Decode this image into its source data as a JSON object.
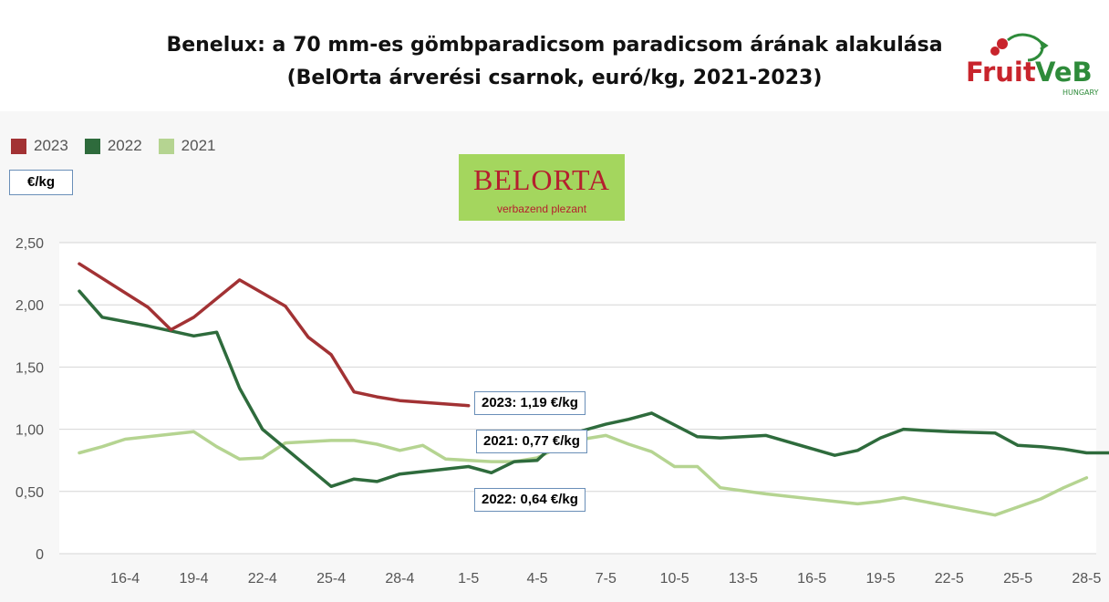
{
  "chart_data": {
    "type": "line",
    "title": "Benelux: a 70 mm-es gömbparadicsom paradicsom árának alakulása",
    "subtitle": "(BelOrta árverési csarnok, euró/kg, 2021-2023)",
    "ylabel": "€/kg",
    "ylim": [
      0,
      2.5
    ],
    "yticks": [
      {
        "v": 0,
        "label": "0"
      },
      {
        "v": 0.5,
        "label": "0,50"
      },
      {
        "v": 1,
        "label": "1,00"
      },
      {
        "v": 1.5,
        "label": "1,50"
      },
      {
        "v": 2,
        "label": "2,00"
      },
      {
        "v": 2.5,
        "label": "2,50"
      }
    ],
    "xticks": [
      "16-4",
      "19-4",
      "22-4",
      "25-4",
      "28-4",
      "1-5",
      "4-5",
      "7-5",
      "10-5",
      "13-5",
      "16-5",
      "19-5",
      "22-5",
      "25-5",
      "28-5"
    ],
    "grid": true,
    "legend": "top-left",
    "series": [
      {
        "name": "2023",
        "color": "#a23234",
        "x": [
          0,
          3,
          4,
          5,
          7,
          9,
          10,
          11,
          12,
          13,
          14,
          17
        ],
        "y": [
          2.33,
          1.98,
          1.8,
          1.9,
          2.2,
          1.99,
          1.74,
          1.6,
          1.3,
          1.26,
          1.23,
          1.19
        ]
      },
      {
        "name": "2022",
        "color": "#2e6b3c",
        "x": [
          0,
          1,
          3,
          4,
          5,
          6,
          7,
          8,
          11,
          12,
          13,
          14,
          15,
          16,
          17,
          18,
          19,
          20,
          21,
          22,
          23,
          24,
          25,
          27,
          28,
          29,
          30,
          33,
          34,
          35,
          36,
          37,
          38,
          40,
          41,
          42,
          43,
          44,
          45
        ],
        "y": [
          2.11,
          1.9,
          1.83,
          1.79,
          1.75,
          1.78,
          1.33,
          1.0,
          0.54,
          0.6,
          0.58,
          0.64,
          0.66,
          0.68,
          0.7,
          0.65,
          0.74,
          0.75,
          0.92,
          0.99,
          1.04,
          1.08,
          1.13,
          0.94,
          0.93,
          0.94,
          0.95,
          0.79,
          0.83,
          0.93,
          1.0,
          0.99,
          0.98,
          0.97,
          0.87,
          0.86,
          0.84,
          0.81,
          0.81
        ]
      },
      {
        "name": "2021",
        "color": "#b5d491",
        "x": [
          0,
          1,
          2,
          3,
          5,
          6,
          7,
          8,
          9,
          10,
          11,
          12,
          13,
          14,
          15,
          16,
          17,
          18,
          19,
          20,
          21,
          22,
          23,
          24,
          25,
          26,
          27,
          28,
          30,
          32,
          34,
          35,
          36,
          38,
          40,
          42,
          43,
          44
        ],
        "y": [
          0.81,
          0.86,
          0.92,
          0.94,
          0.98,
          0.86,
          0.76,
          0.77,
          0.89,
          0.9,
          0.91,
          0.91,
          0.88,
          0.83,
          0.87,
          0.76,
          0.75,
          0.74,
          0.74,
          0.77,
          0.86,
          0.92,
          0.95,
          0.88,
          0.82,
          0.7,
          0.7,
          0.53,
          0.48,
          0.44,
          0.4,
          0.42,
          0.45,
          0.38,
          0.31,
          0.44,
          0.53,
          0.61
        ]
      }
    ],
    "annotations": {
      "a2023": "2023: 1,19 €/kg",
      "a2021": "2021: 0,77 €/kg",
      "a2022": "2022: 0,64 €/kg"
    }
  },
  "logos": {
    "fruitveb": {
      "text": "FruitVeB",
      "sub": "HUNGARY"
    },
    "belorta": {
      "name": "BELORTA",
      "tagline": "verbazend plezant"
    }
  }
}
